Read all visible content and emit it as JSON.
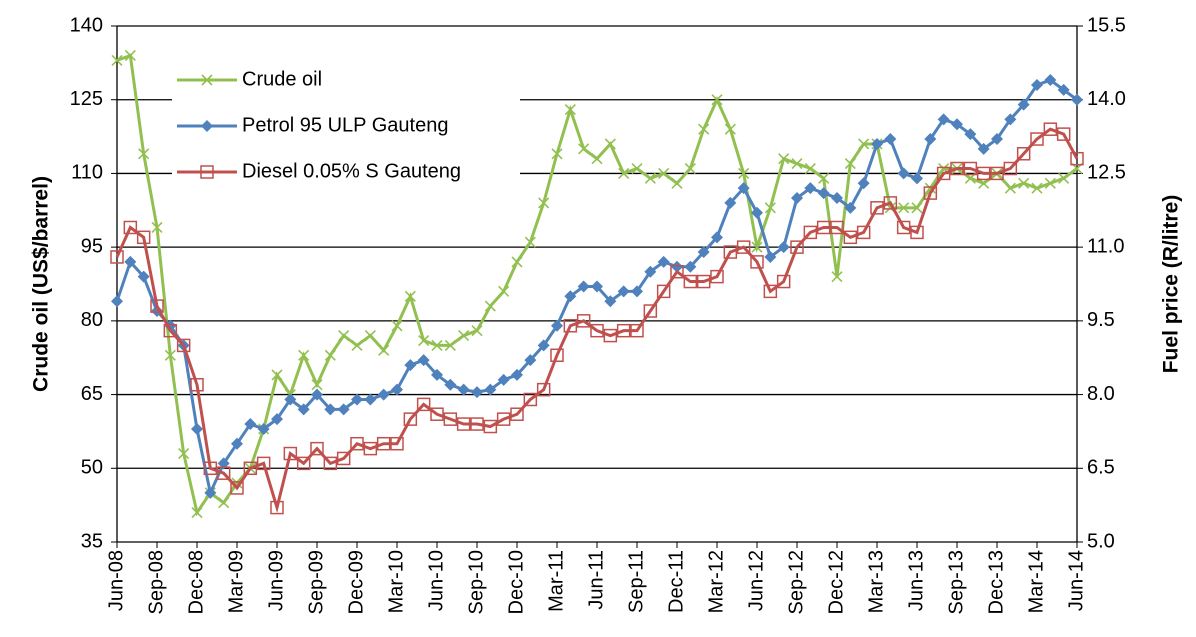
{
  "chart_data": {
    "type": "line",
    "y_label": "Crude oil (US$/barrel)",
    "y2_label": "Fuel price (R/litre)",
    "categories": [
      "Jun-08",
      null,
      null,
      "Sep-08",
      null,
      null,
      "Dec-08",
      null,
      null,
      "Mar-09",
      null,
      null,
      "Jun-09",
      null,
      null,
      "Sep-09",
      null,
      null,
      "Dec-09",
      null,
      null,
      "Mar-10",
      null,
      null,
      "Jun-10",
      null,
      null,
      "Sep-10",
      null,
      null,
      "Dec-10",
      null,
      null,
      "Mar-11",
      null,
      null,
      "Jun-11",
      null,
      null,
      "Sep-11",
      null,
      null,
      "Dec-11",
      null,
      null,
      "Mar-12",
      null,
      null,
      "Jun-12",
      null,
      null,
      "Sep-12",
      null,
      null,
      "Dec-12",
      null,
      null,
      "Mar-13",
      null,
      null,
      "Jun-13",
      null,
      null,
      "Sep-13",
      null,
      null,
      "Dec-13",
      null,
      null,
      "Mar-14",
      null,
      null,
      "Jun-14"
    ],
    "ylim": [
      35,
      140
    ],
    "yticks": [
      35,
      50,
      65,
      80,
      95,
      110,
      125,
      140
    ],
    "y2lim": [
      5,
      15.5
    ],
    "y2ticks": [
      {
        "value": 5,
        "label": "5.0"
      },
      {
        "value": 6.5,
        "label": "6.5"
      },
      {
        "value": 8,
        "label": "8.0"
      },
      {
        "value": 9.5,
        "label": "9.5"
      },
      {
        "value": 11,
        "label": "11.0"
      },
      {
        "value": 12.5,
        "label": "12.5"
      },
      {
        "value": 14,
        "label": "14.0"
      },
      {
        "value": 15.5,
        "label": "15.5"
      }
    ],
    "grid": true,
    "legend": "upper left",
    "series": [
      {
        "name": "Crude oil",
        "color": "#92c050",
        "marker": "x",
        "values": [
          133,
          134,
          114,
          99,
          73,
          53,
          41,
          45,
          43,
          47,
          50,
          58,
          69,
          65,
          73,
          67,
          73,
          77,
          75,
          77,
          74,
          79,
          85,
          76,
          75,
          75,
          77,
          78,
          83,
          86,
          92,
          96,
          104,
          114,
          123,
          115,
          113,
          116,
          110,
          111,
          109,
          110,
          108,
          111,
          119,
          125,
          119,
          110,
          95,
          103,
          113,
          112,
          111,
          109,
          89,
          112,
          116,
          116,
          103,
          103,
          103,
          107,
          111,
          111,
          109,
          108,
          110,
          107,
          108,
          107,
          108,
          109,
          111
        ]
      },
      {
        "name": "Petrol 95 ULP Gauteng",
        "color": "#4f81bd",
        "marker": "diamond",
        "axis": "y2",
        "values": [
          9.9,
          10.7,
          10.4,
          9.7,
          9.4,
          9.0,
          7.3,
          6.0,
          6.6,
          7.0,
          7.4,
          7.3,
          7.5,
          7.9,
          7.7,
          8.0,
          7.7,
          7.7,
          7.9,
          7.9,
          8.0,
          8.1,
          8.6,
          8.7,
          8.4,
          8.2,
          8.1,
          8.05,
          8.1,
          8.3,
          8.4,
          8.7,
          9.0,
          9.4,
          10.0,
          10.2,
          10.2,
          9.9,
          10.1,
          10.1,
          10.5,
          10.7,
          10.6,
          10.6,
          10.9,
          11.2,
          11.9,
          12.2,
          11.7,
          10.8,
          11.0,
          12.0,
          12.2,
          12.1,
          12.0,
          11.8,
          12.3,
          13.1,
          13.2,
          12.5,
          12.4,
          13.2,
          13.6,
          13.5,
          13.3,
          13.0,
          13.2,
          13.6,
          13.9,
          14.3,
          14.4,
          14.2,
          14.0
        ]
      },
      {
        "name": "Diesel 0.05% S Gauteng",
        "color": "#c0504d",
        "marker": "square",
        "axis": "y2",
        "values": [
          10.8,
          11.4,
          11.2,
          9.8,
          9.3,
          9.0,
          8.2,
          6.5,
          6.4,
          6.1,
          6.5,
          6.6,
          5.7,
          6.8,
          6.6,
          6.9,
          6.6,
          6.7,
          7.0,
          6.9,
          7.0,
          7.0,
          7.5,
          7.8,
          7.6,
          7.5,
          7.4,
          7.4,
          7.35,
          7.5,
          7.6,
          7.9,
          8.1,
          8.8,
          9.4,
          9.5,
          9.3,
          9.2,
          9.3,
          9.3,
          9.7,
          10.1,
          10.5,
          10.3,
          10.3,
          10.4,
          10.9,
          11.0,
          10.7,
          10.1,
          10.3,
          11.0,
          11.3,
          11.4,
          11.4,
          11.2,
          11.3,
          11.8,
          11.9,
          11.4,
          11.3,
          12.1,
          12.5,
          12.6,
          12.6,
          12.5,
          12.5,
          12.6,
          12.9,
          13.2,
          13.4,
          13.3,
          12.8
        ]
      }
    ]
  }
}
